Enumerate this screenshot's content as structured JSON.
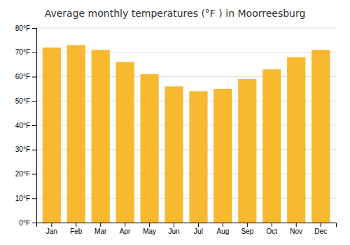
{
  "chart_data": {
    "type": "bar",
    "title": "Average monthly temperatures (°F ) in Moorreesburg",
    "categories": [
      "Jan",
      "Feb",
      "Mar",
      "Apr",
      "May",
      "Jun",
      "Jul",
      "Aug",
      "Sep",
      "Oct",
      "Nov",
      "Dec"
    ],
    "values": [
      72,
      73,
      71,
      66,
      61,
      56,
      54,
      55,
      59,
      63,
      68,
      71
    ],
    "color": "#F8B830",
    "ylim": [
      0,
      80
    ],
    "yticks": [
      {
        "value": 0,
        "label": "0°F"
      },
      {
        "value": 10,
        "label": "10°F"
      },
      {
        "value": 20,
        "label": "20°F"
      },
      {
        "value": 30,
        "label": "30°F"
      },
      {
        "value": 40,
        "label": "40°F"
      },
      {
        "value": 50,
        "label": "50°F"
      },
      {
        "value": 60,
        "label": "60°F"
      },
      {
        "value": 70,
        "label": "70°F"
      },
      {
        "value": 80,
        "label": "80°F"
      }
    ],
    "grid": true
  }
}
